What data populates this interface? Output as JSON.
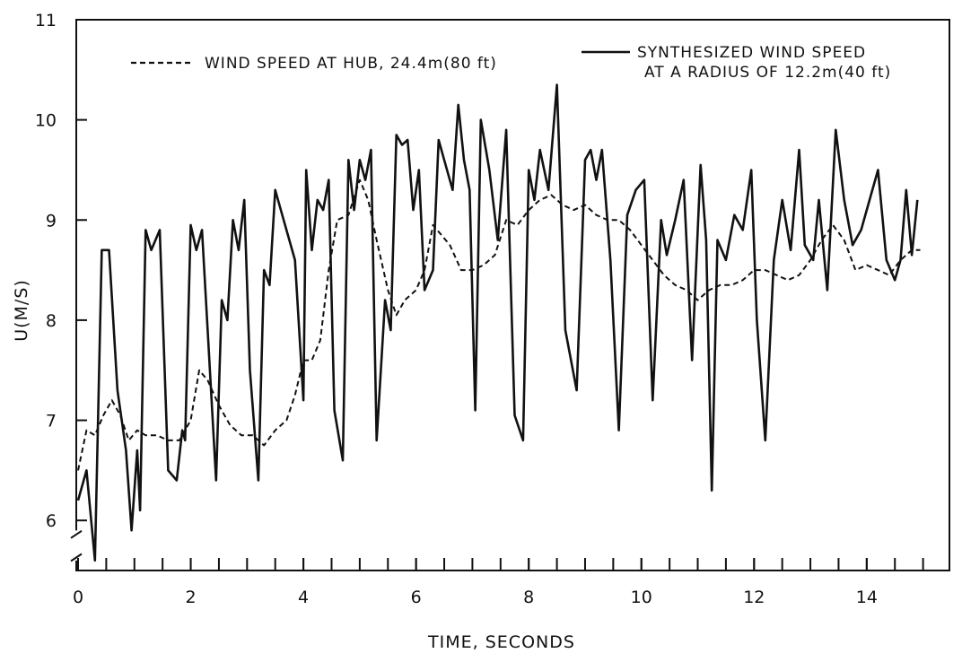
{
  "chart_data": {
    "type": "line",
    "title": "",
    "xlabel": "TIME, SECONDS",
    "ylabel": "U(M/S)",
    "xlim": [
      0,
      15.5
    ],
    "ylim": [
      5.5,
      11
    ],
    "xticks": [
      0,
      2,
      4,
      6,
      8,
      10,
      12,
      14
    ],
    "xticks_minor": [
      0.5,
      1,
      1.5,
      2,
      2.5,
      3,
      3.5,
      4,
      4.5,
      5,
      5.5,
      6,
      6.5,
      7,
      7.5,
      8,
      8.5,
      9,
      9.5,
      10,
      10.5,
      11,
      11.5,
      12,
      12.5,
      13,
      13.5,
      14,
      14.5,
      15
    ],
    "yticks": [
      6,
      7,
      8,
      9,
      10,
      11
    ],
    "axis_break": "y-axis broken below 6",
    "grid": false,
    "legend_placement": "top",
    "series": [
      {
        "name": "WIND SPEED AT HUB, 24.4m(80 ft)",
        "style": "dashed",
        "color": "#111111",
        "x": [
          0.0,
          0.15,
          0.3,
          0.45,
          0.6,
          0.75,
          0.9,
          1.05,
          1.2,
          1.4,
          1.6,
          1.8,
          2.0,
          2.15,
          2.3,
          2.5,
          2.7,
          2.9,
          3.1,
          3.3,
          3.5,
          3.7,
          3.85,
          4.0,
          4.15,
          4.3,
          4.45,
          4.6,
          4.8,
          5.0,
          5.15,
          5.3,
          5.5,
          5.65,
          5.8,
          6.0,
          6.15,
          6.3,
          6.45,
          6.6,
          6.8,
          7.0,
          7.2,
          7.4,
          7.6,
          7.8,
          8.0,
          8.2,
          8.4,
          8.6,
          8.8,
          9.0,
          9.2,
          9.4,
          9.6,
          9.8,
          10.0,
          10.2,
          10.4,
          10.6,
          10.8,
          11.0,
          11.2,
          11.4,
          11.6,
          11.8,
          12.0,
          12.2,
          12.4,
          12.6,
          12.8,
          13.0,
          13.2,
          13.4,
          13.6,
          13.8,
          14.0,
          14.2,
          14.4,
          14.6,
          14.8,
          14.95
        ],
        "values": [
          6.5,
          6.9,
          6.85,
          7.05,
          7.2,
          7.05,
          6.8,
          6.9,
          6.85,
          6.85,
          6.8,
          6.8,
          7.0,
          7.5,
          7.4,
          7.15,
          6.95,
          6.85,
          6.85,
          6.75,
          6.9,
          7.0,
          7.25,
          7.6,
          7.6,
          7.8,
          8.5,
          9.0,
          9.05,
          9.4,
          9.2,
          8.8,
          8.3,
          8.05,
          8.2,
          8.3,
          8.5,
          8.95,
          8.85,
          8.75,
          8.5,
          8.5,
          8.55,
          8.65,
          9.0,
          8.95,
          9.1,
          9.2,
          9.25,
          9.15,
          9.1,
          9.15,
          9.05,
          9.0,
          9.0,
          8.9,
          8.75,
          8.6,
          8.45,
          8.35,
          8.3,
          8.2,
          8.3,
          8.35,
          8.35,
          8.4,
          8.5,
          8.5,
          8.45,
          8.4,
          8.45,
          8.6,
          8.8,
          8.95,
          8.8,
          8.5,
          8.55,
          8.5,
          8.45,
          8.6,
          8.7,
          8.7
        ]
      },
      {
        "name": "SYNTHESIZED WIND SPEED AT A RADIUS OF 12.2m(40 ft)",
        "style": "solid",
        "color": "#111111",
        "x": [
          0.0,
          0.15,
          0.3,
          0.42,
          0.55,
          0.7,
          0.85,
          0.95,
          1.05,
          1.1,
          1.2,
          1.3,
          1.45,
          1.6,
          1.75,
          1.85,
          1.9,
          2.0,
          2.1,
          2.2,
          2.3,
          2.45,
          2.55,
          2.65,
          2.75,
          2.85,
          2.95,
          3.05,
          3.2,
          3.3,
          3.4,
          3.5,
          3.65,
          3.85,
          4.0,
          4.05,
          4.15,
          4.25,
          4.35,
          4.45,
          4.55,
          4.7,
          4.8,
          4.9,
          5.0,
          5.1,
          5.2,
          5.3,
          5.45,
          5.55,
          5.65,
          5.75,
          5.85,
          5.95,
          6.05,
          6.15,
          6.3,
          6.4,
          6.5,
          6.65,
          6.75,
          6.85,
          6.95,
          7.05,
          7.15,
          7.3,
          7.45,
          7.6,
          7.75,
          7.9,
          8.0,
          8.1,
          8.2,
          8.35,
          8.5,
          8.65,
          8.85,
          9.0,
          9.1,
          9.2,
          9.3,
          9.45,
          9.6,
          9.75,
          9.9,
          10.05,
          10.2,
          10.35,
          10.45,
          10.6,
          10.75,
          10.9,
          11.05,
          11.15,
          11.25,
          11.35,
          11.5,
          11.65,
          11.8,
          11.95,
          12.05,
          12.2,
          12.35,
          12.5,
          12.65,
          12.8,
          12.9,
          13.05,
          13.15,
          13.3,
          13.45,
          13.6,
          13.75,
          13.9,
          14.05,
          14.2,
          14.35,
          14.5,
          14.6,
          14.7,
          14.8,
          14.9
        ],
        "values": [
          6.2,
          6.5,
          5.6,
          8.7,
          8.7,
          7.3,
          6.7,
          5.9,
          6.7,
          6.1,
          8.9,
          8.7,
          8.9,
          6.5,
          6.4,
          6.9,
          6.8,
          8.95,
          8.7,
          8.9,
          7.9,
          6.4,
          8.2,
          8.0,
          9.0,
          8.7,
          9.2,
          7.5,
          6.4,
          8.5,
          8.35,
          9.3,
          9.0,
          8.6,
          7.2,
          9.5,
          8.7,
          9.2,
          9.1,
          9.4,
          7.1,
          6.6,
          9.6,
          9.1,
          9.6,
          9.4,
          9.7,
          6.8,
          8.2,
          7.9,
          9.85,
          9.75,
          9.8,
          9.1,
          9.5,
          8.3,
          8.5,
          9.8,
          9.6,
          9.3,
          10.15,
          9.6,
          9.3,
          7.1,
          10.0,
          9.5,
          8.8,
          9.9,
          7.05,
          6.8,
          9.5,
          9.2,
          9.7,
          9.3,
          10.35,
          7.9,
          7.3,
          9.6,
          9.7,
          9.4,
          9.7,
          8.6,
          6.9,
          9.05,
          9.3,
          9.4,
          7.2,
          9.0,
          8.65,
          9.0,
          9.4,
          7.6,
          9.55,
          8.8,
          6.3,
          8.8,
          8.6,
          9.05,
          8.9,
          9.5,
          8.0,
          6.8,
          8.6,
          9.2,
          8.7,
          9.7,
          8.75,
          8.6,
          9.2,
          8.3,
          9.9,
          9.2,
          8.75,
          8.9,
          9.2,
          9.5,
          8.6,
          8.4,
          8.6,
          9.3,
          8.65,
          9.2
        ]
      }
    ]
  }
}
